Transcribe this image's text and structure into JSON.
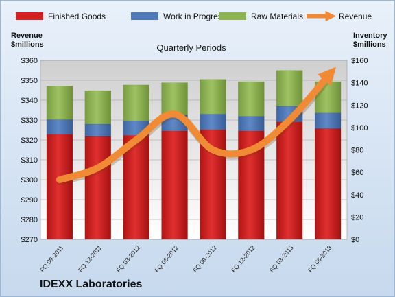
{
  "company": "IDEXX Laboratories",
  "colors": {
    "finished_goods": "#d21f1f",
    "work_in_progress": "#4f79b8",
    "raw_materials": "#8eb353",
    "revenue": "#f08a35"
  },
  "chart_data": {
    "type": "bar",
    "stacked": true,
    "title": "Quarterly Periods",
    "categories": [
      "FQ 09-2011",
      "FQ 12-2011",
      "FQ 03-2012",
      "FQ 06-2012",
      "FQ 09-2012",
      "FQ 12-2012",
      "FQ 03-2013",
      "FQ 06-2013"
    ],
    "series": [
      {
        "name": "Finished Goods",
        "axis": "right",
        "values": [
          94,
          92,
          93,
          97,
          98,
          97,
          105,
          99
        ]
      },
      {
        "name": "Work in Progress",
        "axis": "right",
        "values": [
          13,
          11,
          13,
          14,
          14,
          13,
          14,
          14
        ]
      },
      {
        "name": "Raw Materials",
        "axis": "right",
        "values": [
          30,
          30,
          32,
          29,
          31,
          31,
          32,
          28
        ]
      },
      {
        "name": "Revenue",
        "axis": "left",
        "type": "line",
        "values": [
          300,
          306,
          320,
          333,
          315,
          315,
          330,
          352
        ]
      }
    ],
    "y_left": {
      "label": "Revenue\n$millions",
      "ylim": [
        270,
        360
      ],
      "ticks": [
        "$270",
        "$280",
        "$290",
        "$300",
        "$310",
        "$320",
        "$330",
        "$340",
        "$350",
        "$360"
      ]
    },
    "y_right": {
      "label": "Inventory\n$millions",
      "ylim": [
        0,
        160
      ],
      "ticks": [
        "$0",
        "$20",
        "$40",
        "$60",
        "$80",
        "$100",
        "$120",
        "$140",
        "$160"
      ]
    },
    "legend": {
      "position": "top",
      "entries": [
        "Finished Goods",
        "Work in Progress",
        "Raw Materials",
        "Revenue"
      ]
    },
    "grid": true
  }
}
